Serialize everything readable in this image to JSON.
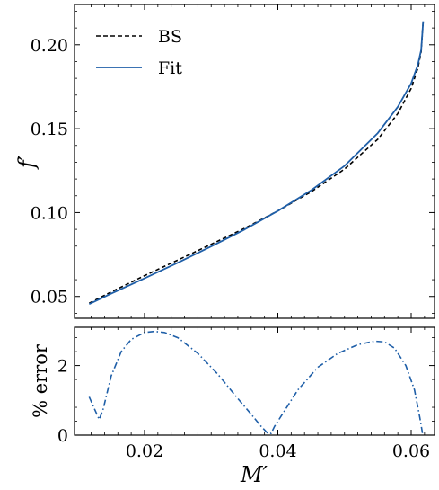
{
  "chart_data": [
    {
      "type": "line",
      "xlim": [
        0.0095,
        0.0635
      ],
      "ylim": [
        0.037,
        0.224
      ],
      "x_ticks": [
        0.02,
        0.04,
        0.06
      ],
      "y_ticks": [
        0.05,
        0.1,
        0.15,
        0.2
      ],
      "y_tick_labels": [
        "0.05",
        "0.10",
        "0.15",
        "0.20"
      ],
      "xlabel": "",
      "ylabel": "f′",
      "legend": "top-left",
      "grid": false,
      "series": [
        {
          "name": "BS",
          "color": "#000000",
          "style": "dashed",
          "x": [
            0.0117,
            0.015,
            0.02,
            0.025,
            0.03,
            0.035,
            0.04,
            0.045,
            0.05,
            0.055,
            0.058,
            0.06,
            0.061,
            0.0615,
            0.0618
          ],
          "y": [
            0.046,
            0.0527,
            0.0624,
            0.0717,
            0.0811,
            0.0906,
            0.101,
            0.1124,
            0.1259,
            0.1437,
            0.159,
            0.174,
            0.186,
            0.196,
            0.214
          ]
        },
        {
          "name": "Fit",
          "color": "#1f5fa8",
          "style": "solid",
          "x": [
            0.0117,
            0.015,
            0.02,
            0.025,
            0.03,
            0.035,
            0.04,
            0.045,
            0.05,
            0.055,
            0.058,
            0.06,
            0.061,
            0.0615,
            0.0618
          ],
          "y": [
            0.0455,
            0.0517,
            0.0608,
            0.0701,
            0.0798,
            0.0899,
            0.101,
            0.1133,
            0.1278,
            0.1474,
            0.163,
            0.177,
            0.188,
            0.197,
            0.214
          ]
        }
      ]
    },
    {
      "type": "line",
      "xlim": [
        0.0095,
        0.0635
      ],
      "ylim": [
        0,
        3.1
      ],
      "x_ticks": [
        0.02,
        0.04,
        0.06
      ],
      "x_tick_labels": [
        "0.02",
        "0.04",
        "0.06"
      ],
      "y_ticks": [
        0,
        2
      ],
      "y_tick_labels": [
        "0",
        "2"
      ],
      "xlabel": "M′",
      "ylabel": "% error",
      "grid": false,
      "series": [
        {
          "color": "#1f5fa8",
          "style": "dashdot",
          "x": [
            0.0117,
            0.0125,
            0.0132,
            0.0138,
            0.015,
            0.0165,
            0.018,
            0.02,
            0.0215,
            0.023,
            0.025,
            0.028,
            0.031,
            0.034,
            0.036,
            0.0375,
            0.0385,
            0.039,
            0.0395,
            0.041,
            0.043,
            0.046,
            0.049,
            0.052,
            0.0545,
            0.056,
            0.0575,
            0.0592,
            0.0605,
            0.0613,
            0.0617,
            0.0619
          ],
          "y": [
            1.1,
            0.75,
            0.45,
            0.75,
            1.7,
            2.4,
            2.75,
            2.95,
            2.98,
            2.95,
            2.8,
            2.35,
            1.75,
            1.05,
            0.6,
            0.25,
            0.05,
            0.05,
            0.25,
            0.7,
            1.3,
            1.95,
            2.35,
            2.6,
            2.7,
            2.68,
            2.5,
            2.0,
            1.3,
            0.5,
            0.05,
            0.05
          ]
        }
      ]
    }
  ]
}
